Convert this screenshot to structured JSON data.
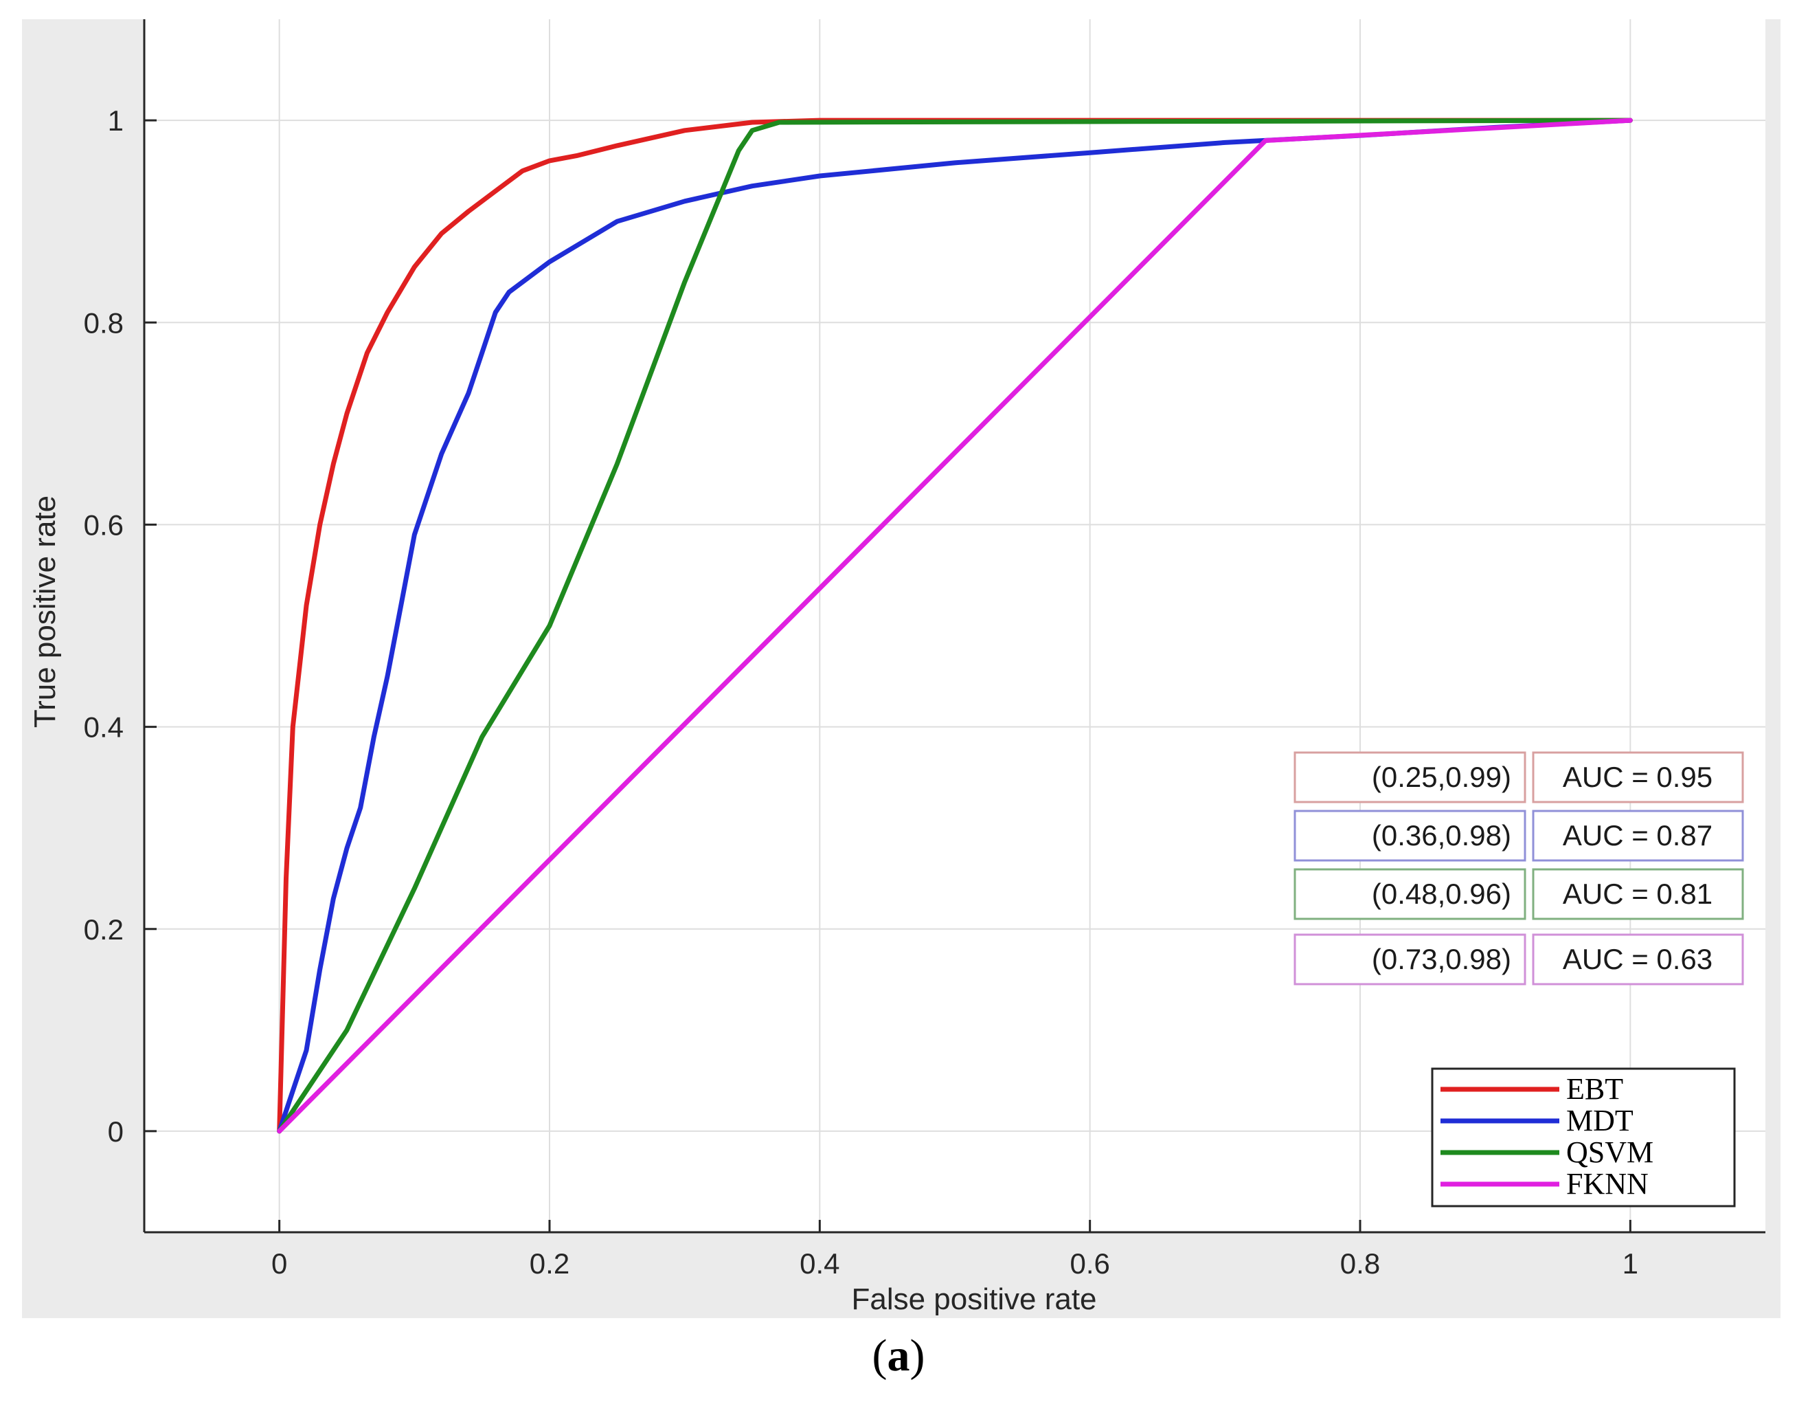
{
  "chart_data": {
    "type": "line",
    "xlabel": "False positive rate",
    "ylabel": "True positive rate",
    "xlim": [
      -0.1,
      1.1
    ],
    "ylim": [
      -0.1,
      1.1
    ],
    "xticks": [
      0,
      0.2,
      0.4,
      0.6,
      0.8,
      1
    ],
    "yticks": [
      0,
      0.2,
      0.4,
      0.6,
      0.8,
      1
    ],
    "xtick_labels": [
      "0",
      "0.2",
      "0.4",
      "0.6",
      "0.8",
      "1"
    ],
    "ytick_labels": [
      "0",
      "0.2",
      "0.4",
      "0.6",
      "0.8",
      "1"
    ],
    "grid": true,
    "legend_position": "bottom-right",
    "series": [
      {
        "name": "EBT",
        "color": "#e02020",
        "x": [
          0,
          0.005,
          0.01,
          0.015,
          0.02,
          0.03,
          0.04,
          0.05,
          0.065,
          0.08,
          0.1,
          0.12,
          0.14,
          0.16,
          0.18,
          0.2,
          0.22,
          0.25,
          0.3,
          0.35,
          0.4,
          1
        ],
        "y": [
          0,
          0.25,
          0.4,
          0.46,
          0.52,
          0.6,
          0.66,
          0.71,
          0.77,
          0.81,
          0.855,
          0.888,
          0.91,
          0.93,
          0.95,
          0.96,
          0.965,
          0.975,
          0.99,
          0.998,
          1,
          1
        ]
      },
      {
        "name": "MDT",
        "color": "#1f2dd6",
        "x": [
          0,
          0.01,
          0.02,
          0.03,
          0.04,
          0.05,
          0.06,
          0.07,
          0.08,
          0.09,
          0.1,
          0.11,
          0.12,
          0.13,
          0.14,
          0.15,
          0.16,
          0.17,
          0.2,
          0.25,
          0.3,
          0.35,
          0.4,
          0.5,
          0.6,
          0.7,
          0.8,
          0.9,
          1
        ],
        "y": [
          0,
          0.04,
          0.08,
          0.16,
          0.23,
          0.28,
          0.32,
          0.39,
          0.45,
          0.52,
          0.59,
          0.63,
          0.67,
          0.7,
          0.73,
          0.77,
          0.81,
          0.83,
          0.86,
          0.9,
          0.92,
          0.935,
          0.945,
          0.958,
          0.968,
          0.978,
          0.985,
          0.993,
          1
        ]
      },
      {
        "name": "QSVM",
        "color": "#1e8a1e",
        "x": [
          0,
          0.05,
          0.1,
          0.15,
          0.2,
          0.25,
          0.3,
          0.34,
          0.35,
          0.37,
          1
        ],
        "y": [
          0,
          0.1,
          0.24,
          0.39,
          0.5,
          0.66,
          0.84,
          0.97,
          0.99,
          0.998,
          1
        ]
      },
      {
        "name": "FKNN",
        "color": "#e020e0",
        "x": [
          0,
          0.73,
          1
        ],
        "y": [
          0,
          0.98,
          1
        ]
      }
    ],
    "annotations": [
      {
        "point": "(0.25,0.99)",
        "auc": "AUC = 0.95",
        "color": "#d8a0a0"
      },
      {
        "point": "(0.36,0.98)",
        "auc": "AUC = 0.87",
        "color": "#9090d8"
      },
      {
        "point": "(0.48,0.96)",
        "auc": "AUC = 0.81",
        "color": "#80b080"
      },
      {
        "point": "(0.73,0.98)",
        "auc": "AUC = 0.63",
        "color": "#d090d8"
      }
    ]
  },
  "caption": {
    "label": "a"
  }
}
